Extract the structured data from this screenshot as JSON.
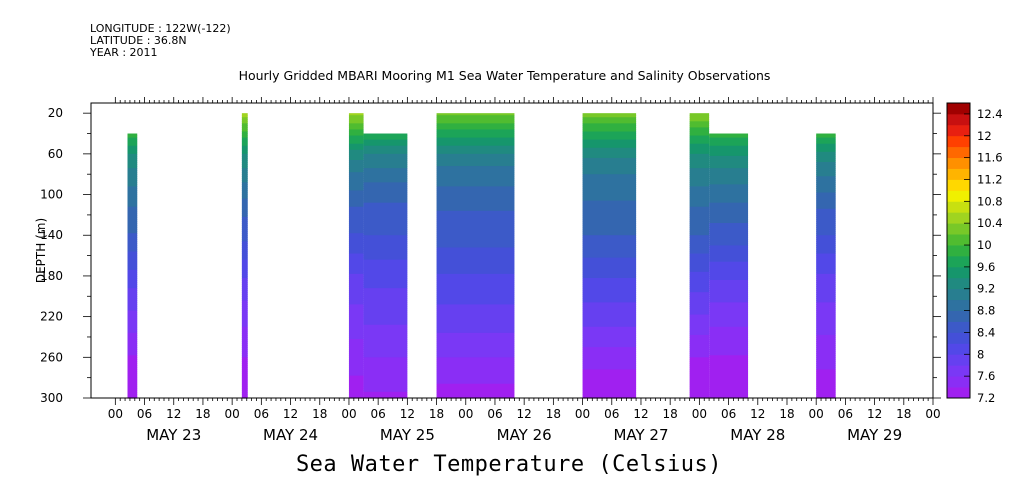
{
  "meta": {
    "longitude": "LONGITUDE : 122W(-122)",
    "latitude": "LATITUDE : 36.8N",
    "year": "YEAR : 2011"
  },
  "title": "Hourly Gridded MBARI Mooring M1 Sea Water Temperature and Salinity Observations",
  "bottom_title": "Sea Water Temperature (Celsius)",
  "chart_data": {
    "type": "heatmap",
    "title": "Hourly Gridded MBARI Mooring M1 Sea Water Temperature and Salinity Observations",
    "xlabel": "",
    "ylabel": "DEPTH (m)",
    "colorbar_label": "Sea Water Temperature (Celsius)",
    "x_unit": "hours since May 23 00:00",
    "xlim": [
      -5,
      168
    ],
    "ylim": [
      300,
      10
    ],
    "y_ticks": [
      20,
      60,
      100,
      140,
      180,
      220,
      260,
      300
    ],
    "x_hour_ticks": [
      0,
      6,
      12,
      18
    ],
    "x_hour_tick_labels": [
      "00",
      "06",
      "12",
      "18"
    ],
    "x_day_labels": [
      "MAY 23",
      "MAY 24",
      "MAY 25",
      "MAY 26",
      "MAY 27",
      "MAY 28",
      "MAY 29"
    ],
    "colorbar_levels": [
      7.2,
      7.4,
      7.6,
      7.8,
      8.0,
      8.2,
      8.4,
      8.6,
      8.8,
      9.0,
      9.2,
      9.4,
      9.6,
      9.8,
      10.0,
      10.2,
      10.4,
      10.6,
      10.8,
      11.0,
      11.2,
      11.4,
      11.6,
      11.8,
      12.0,
      12.2,
      12.4,
      12.6
    ],
    "colorbar_colors": [
      "#a020f0",
      "#8a2ef5",
      "#7a38f5",
      "#6640f0",
      "#5248e8",
      "#4450d8",
      "#3c5ac8",
      "#3466b0",
      "#2e72a0",
      "#287e90",
      "#208a80",
      "#16966c",
      "#1ca458",
      "#30b040",
      "#50bc30",
      "#78c828",
      "#a0d420",
      "#c8e010",
      "#f0f000",
      "#ffd800",
      "#ffb400",
      "#ff9000",
      "#ff6800",
      "#ff4000",
      "#e82010",
      "#c81010",
      "#a00000"
    ],
    "colorbar_tick_labels": [
      "7.2",
      "7.6",
      "8",
      "8.4",
      "8.8",
      "9.2",
      "9.6",
      "10",
      "10.4",
      "10.8",
      "11.2",
      "11.6",
      "12",
      "12.4"
    ],
    "segments": [
      {
        "x_start": 2.5,
        "x_end": 4.5,
        "depth_top": 40,
        "depth_bottom": 300
      },
      {
        "x_start": 26.0,
        "x_end": 27.2,
        "depth_top": 20,
        "depth_bottom": 300
      },
      {
        "x_start": 48.0,
        "x_end": 51.0,
        "depth_top": 20,
        "depth_bottom": 300
      },
      {
        "x_start": 51.0,
        "x_end": 60.0,
        "depth_top": 40,
        "depth_bottom": 300
      },
      {
        "x_start": 66.0,
        "x_end": 82.0,
        "depth_top": 20,
        "depth_bottom": 300
      },
      {
        "x_start": 96.0,
        "x_end": 107.0,
        "depth_top": 20,
        "depth_bottom": 300
      },
      {
        "x_start": 118.0,
        "x_end": 122.0,
        "depth_top": 20,
        "depth_bottom": 300
      },
      {
        "x_start": 122.0,
        "x_end": 130.0,
        "depth_top": 40,
        "depth_bottom": 300
      },
      {
        "x_start": 144.0,
        "x_end": 148.0,
        "depth_top": 40,
        "depth_bottom": 300
      }
    ],
    "representative_profile": [
      {
        "depth": 20,
        "temp": 10.4
      },
      {
        "depth": 40,
        "temp": 9.8
      },
      {
        "depth": 60,
        "temp": 9.3
      },
      {
        "depth": 80,
        "temp": 9.0
      },
      {
        "depth": 100,
        "temp": 8.8
      },
      {
        "depth": 120,
        "temp": 8.6
      },
      {
        "depth": 140,
        "temp": 8.5
      },
      {
        "depth": 160,
        "temp": 8.3
      },
      {
        "depth": 180,
        "temp": 8.1
      },
      {
        "depth": 200,
        "temp": 7.95
      },
      {
        "depth": 220,
        "temp": 7.8
      },
      {
        "depth": 240,
        "temp": 7.65
      },
      {
        "depth": 260,
        "temp": 7.5
      },
      {
        "depth": 280,
        "temp": 7.35
      },
      {
        "depth": 300,
        "temp": 7.25
      }
    ]
  }
}
